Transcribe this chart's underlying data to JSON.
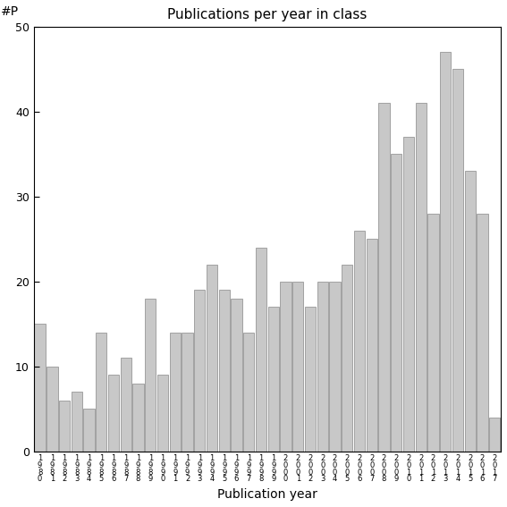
{
  "title": "Publications per year in class",
  "xlabel": "Publication year",
  "ylabel": "#P",
  "ylim": [
    0,
    50
  ],
  "yticks": [
    0,
    10,
    20,
    30,
    40,
    50
  ],
  "bar_color": "#c8c8c8",
  "bar_edgecolor": "#888888",
  "years_digits": [
    [
      "1",
      "9",
      "8",
      "0"
    ],
    [
      "1",
      "9",
      "8",
      "1"
    ],
    [
      "1",
      "9",
      "8",
      "2"
    ],
    [
      "1",
      "9",
      "8",
      "3"
    ],
    [
      "1",
      "9",
      "8",
      "4"
    ],
    [
      "1",
      "9",
      "8",
      "5"
    ],
    [
      "1",
      "9",
      "8",
      "6"
    ],
    [
      "1",
      "9",
      "8",
      "7"
    ],
    [
      "1",
      "9",
      "8",
      "8"
    ],
    [
      "1",
      "9",
      "8",
      "9"
    ],
    [
      "1",
      "9",
      "9",
      "0"
    ],
    [
      "1",
      "9",
      "9",
      "1"
    ],
    [
      "1",
      "9",
      "9",
      "2"
    ],
    [
      "1",
      "9",
      "9",
      "3"
    ],
    [
      "1",
      "9",
      "9",
      "4"
    ],
    [
      "1",
      "9",
      "9",
      "5"
    ],
    [
      "1",
      "9",
      "9",
      "6"
    ],
    [
      "1",
      "9",
      "9",
      "7"
    ],
    [
      "1",
      "9",
      "9",
      "8"
    ],
    [
      "1",
      "9",
      "9",
      "9"
    ],
    [
      "2",
      "0",
      "0",
      "0"
    ],
    [
      "2",
      "0",
      "0",
      "1"
    ],
    [
      "2",
      "0",
      "0",
      "2"
    ],
    [
      "2",
      "0",
      "0",
      "3"
    ],
    [
      "2",
      "0",
      "0",
      "4"
    ],
    [
      "2",
      "0",
      "0",
      "5"
    ],
    [
      "2",
      "0",
      "0",
      "6"
    ],
    [
      "2",
      "0",
      "0",
      "7"
    ],
    [
      "2",
      "0",
      "0",
      "8"
    ],
    [
      "2",
      "0",
      "0",
      "9"
    ],
    [
      "2",
      "0",
      "1",
      "0"
    ],
    [
      "2",
      "0",
      "1",
      "1"
    ],
    [
      "2",
      "0",
      "1",
      "2"
    ],
    [
      "2",
      "0",
      "1",
      "3"
    ],
    [
      "2",
      "0",
      "1",
      "4"
    ],
    [
      "2",
      "0",
      "1",
      "5"
    ],
    [
      "2",
      "0",
      "1",
      "6"
    ],
    [
      "2",
      "0",
      "1",
      "7"
    ]
  ],
  "values": [
    15,
    10,
    6,
    7,
    5,
    14,
    9,
    11,
    8,
    18,
    9,
    14,
    14,
    19,
    22,
    19,
    18,
    14,
    24,
    17,
    20,
    20,
    17,
    20,
    20,
    22,
    26,
    25,
    41,
    35,
    37,
    41,
    28,
    47,
    45,
    33,
    28,
    4
  ]
}
